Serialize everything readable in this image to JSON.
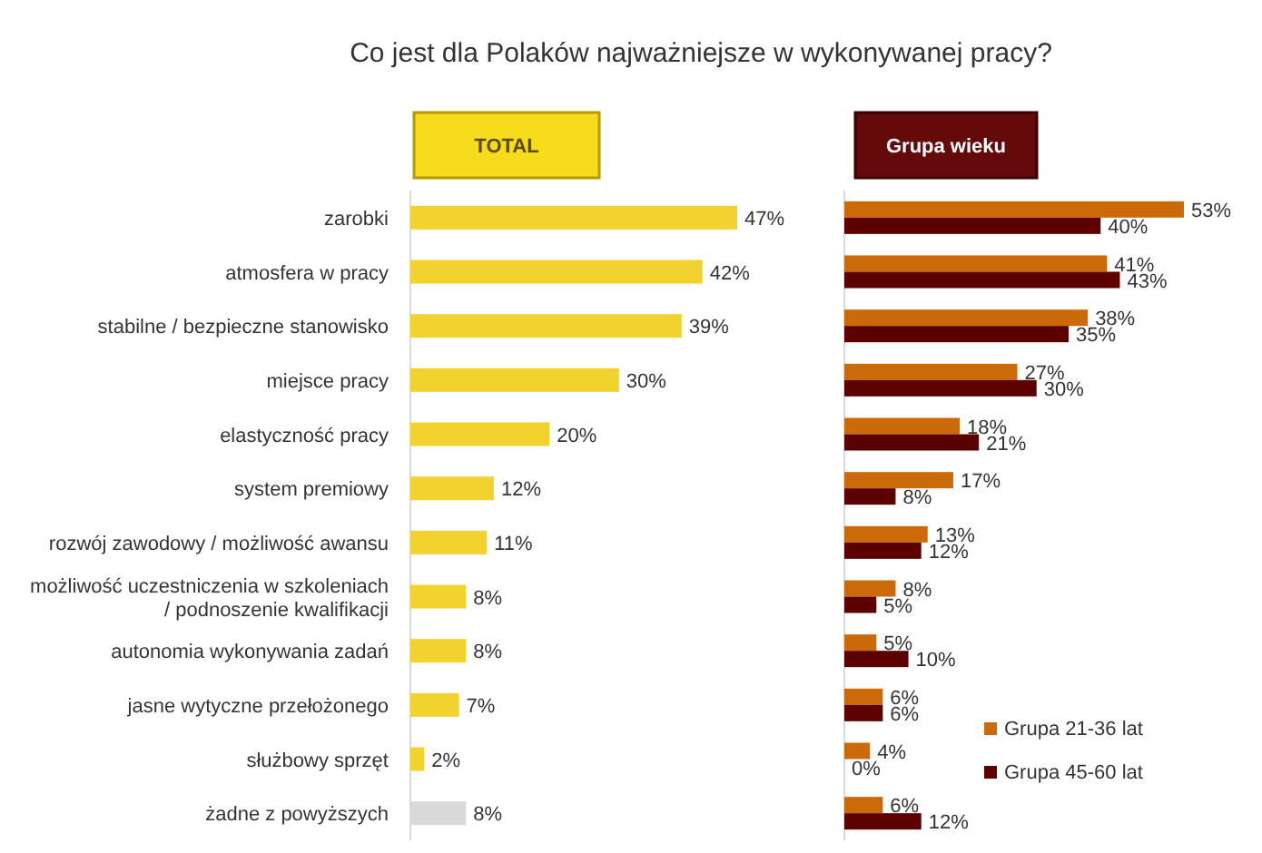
{
  "chart_data": [
    {
      "type": "bar",
      "orientation": "horizontal",
      "title": "Co jest dla Polaków najważniejsze w wykonywanej pracy?",
      "subtitle": "TOTAL",
      "categories": [
        "zarobki",
        "atmosfera w pracy",
        "stabilne / bezpieczne stanowisko",
        "miejsce pracy",
        "elastyczność pracy",
        "system premiowy",
        "rozwój zawodowy / możliwość awansu",
        "możliwość uczestniczenia w szkoleniach / podnoszenie kwalifikacji",
        "autonomia wykonywania zadań",
        "jasne wytyczne przełożonego",
        "służbowy sprzęt",
        "żadne z powyższych"
      ],
      "values": [
        47,
        42,
        39,
        30,
        20,
        12,
        11,
        8,
        8,
        7,
        2,
        8
      ],
      "colors": [
        "#f2d22e",
        "#f2d22e",
        "#f2d22e",
        "#f2d22e",
        "#f2d22e",
        "#f2d22e",
        "#f2d22e",
        "#f2d22e",
        "#f2d22e",
        "#f2d22e",
        "#f2d22e",
        "#d9d9d9"
      ],
      "value_labels": [
        "47%",
        "42%",
        "39%",
        "30%",
        "20%",
        "12%",
        "11%",
        "8%",
        "8%",
        "7%",
        "2%",
        "8%"
      ],
      "legend": false
    },
    {
      "type": "bar",
      "orientation": "horizontal",
      "subtitle": "Grupa wieku",
      "categories": [
        null,
        null,
        null,
        null,
        null,
        null,
        null,
        null,
        null,
        null,
        null,
        null
      ],
      "series": [
        {
          "name": "Grupa 21-36 lat",
          "color": "#cc6a0a",
          "values": [
            53,
            41,
            38,
            27,
            18,
            17,
            13,
            8,
            5,
            6,
            4,
            6
          ],
          "value_labels": [
            "53%",
            "41%",
            "38%",
            "27%",
            "18%",
            "17%",
            "13%",
            "8%",
            "5%",
            "6%",
            "4%",
            "6%"
          ]
        },
        {
          "name": "Grupa 45-60 lat",
          "color": "#5c0000",
          "values": [
            40,
            43,
            35,
            30,
            21,
            8,
            12,
            5,
            10,
            6,
            0,
            12
          ],
          "value_labels": [
            "40%",
            "43%",
            "35%",
            "30%",
            "21%",
            "8%",
            "12%",
            "5%",
            "10%",
            "6%",
            "0%",
            "12%"
          ]
        }
      ],
      "legend": "bottom right"
    }
  ]
}
